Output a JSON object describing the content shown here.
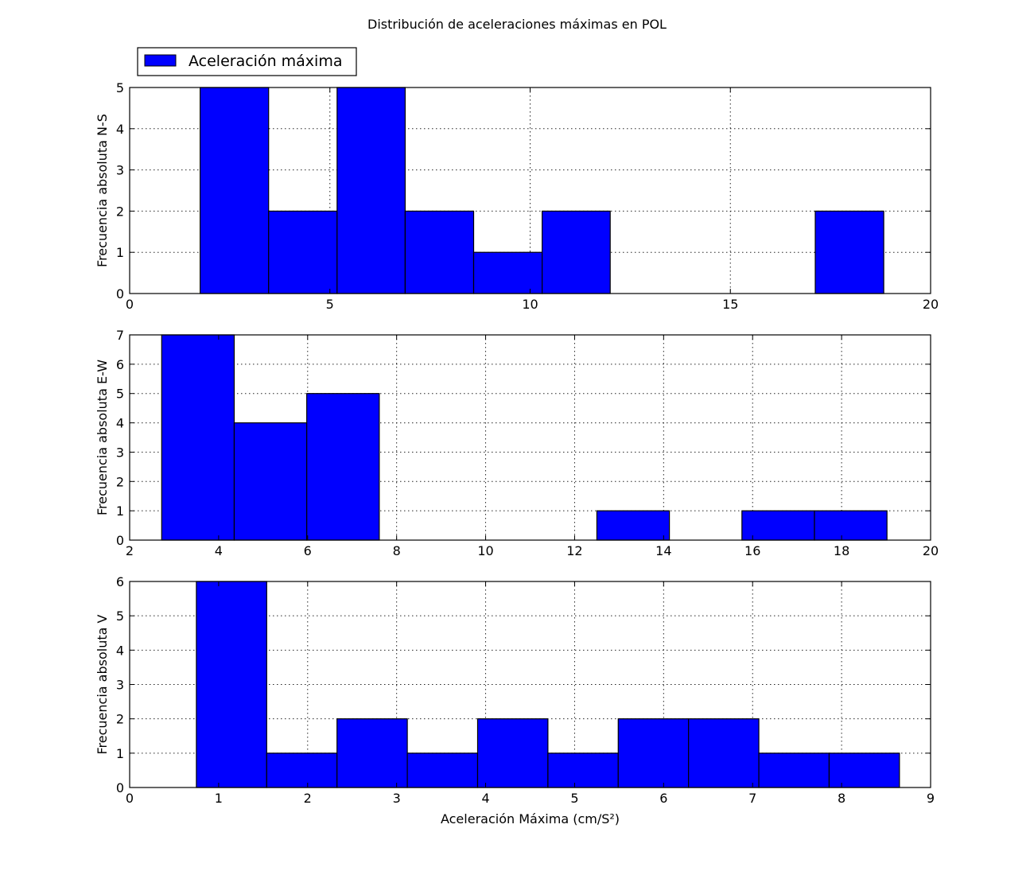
{
  "title": "Distribución de aceleraciones máximas en POL",
  "legend": {
    "label": "Aceleración máxima",
    "position": "top-left",
    "color": "#0000ff"
  },
  "chart_data": [
    {
      "type": "bar",
      "title": "",
      "xlabel": "",
      "ylabel": "Frecuencia absoluta N-S",
      "xlim": [
        0,
        20
      ],
      "ylim": [
        0,
        5
      ],
      "xticks": [
        "0",
        "5",
        "10",
        "15",
        "20"
      ],
      "yticks": [
        "0",
        "1",
        "2",
        "3",
        "4",
        "5"
      ],
      "grid": true,
      "color": "#0000ff",
      "bins": [
        {
          "x0": 1.76,
          "x1": 3.47,
          "value": 5
        },
        {
          "x0": 3.47,
          "x1": 5.18,
          "value": 2
        },
        {
          "x0": 5.18,
          "x1": 6.88,
          "value": 5
        },
        {
          "x0": 6.88,
          "x1": 8.59,
          "value": 2
        },
        {
          "x0": 8.59,
          "x1": 10.3,
          "value": 1
        },
        {
          "x0": 10.3,
          "x1": 12.0,
          "value": 2
        },
        {
          "x0": 12.0,
          "x1": 13.71,
          "value": 0
        },
        {
          "x0": 13.71,
          "x1": 15.42,
          "value": 0
        },
        {
          "x0": 15.42,
          "x1": 17.12,
          "value": 0
        },
        {
          "x0": 17.12,
          "x1": 18.83,
          "value": 2
        }
      ]
    },
    {
      "type": "bar",
      "title": "",
      "xlabel": "",
      "ylabel": "Frecuencia absoluta E-W",
      "xlim": [
        2,
        20
      ],
      "ylim": [
        0,
        7
      ],
      "xticks": [
        "2",
        "4",
        "6",
        "8",
        "10",
        "12",
        "14",
        "16",
        "18",
        "20"
      ],
      "yticks": [
        "0",
        "1",
        "2",
        "3",
        "4",
        "5",
        "6",
        "7"
      ],
      "grid": true,
      "color": "#0000ff",
      "bins": [
        {
          "x0": 2.72,
          "x1": 4.35,
          "value": 7
        },
        {
          "x0": 4.35,
          "x1": 5.98,
          "value": 4
        },
        {
          "x0": 5.98,
          "x1": 7.61,
          "value": 5
        },
        {
          "x0": 7.61,
          "x1": 9.24,
          "value": 0
        },
        {
          "x0": 9.24,
          "x1": 10.87,
          "value": 0
        },
        {
          "x0": 10.87,
          "x1": 12.5,
          "value": 0
        },
        {
          "x0": 12.5,
          "x1": 14.13,
          "value": 1
        },
        {
          "x0": 14.13,
          "x1": 15.76,
          "value": 0
        },
        {
          "x0": 15.76,
          "x1": 17.39,
          "value": 1
        },
        {
          "x0": 17.39,
          "x1": 19.02,
          "value": 1
        }
      ]
    },
    {
      "type": "bar",
      "title": "",
      "xlabel": "Aceleración Máxima (cm/S²)",
      "ylabel": "Frecuencia absoluta V",
      "xlim": [
        0,
        9
      ],
      "ylim": [
        0,
        6
      ],
      "xticks": [
        "0",
        "1",
        "2",
        "3",
        "4",
        "5",
        "6",
        "7",
        "8",
        "9"
      ],
      "yticks": [
        "0",
        "1",
        "2",
        "3",
        "4",
        "5",
        "6"
      ],
      "grid": true,
      "color": "#0000ff",
      "bins": [
        {
          "x0": 0.75,
          "x1": 1.54,
          "value": 6
        },
        {
          "x0": 1.54,
          "x1": 2.33,
          "value": 1
        },
        {
          "x0": 2.33,
          "x1": 3.12,
          "value": 2
        },
        {
          "x0": 3.12,
          "x1": 3.91,
          "value": 1
        },
        {
          "x0": 3.91,
          "x1": 4.7,
          "value": 2
        },
        {
          "x0": 4.7,
          "x1": 5.49,
          "value": 1
        },
        {
          "x0": 5.49,
          "x1": 6.28,
          "value": 2
        },
        {
          "x0": 6.28,
          "x1": 7.07,
          "value": 2
        },
        {
          "x0": 7.07,
          "x1": 7.86,
          "value": 1
        },
        {
          "x0": 7.86,
          "x1": 8.65,
          "value": 1
        }
      ]
    }
  ]
}
